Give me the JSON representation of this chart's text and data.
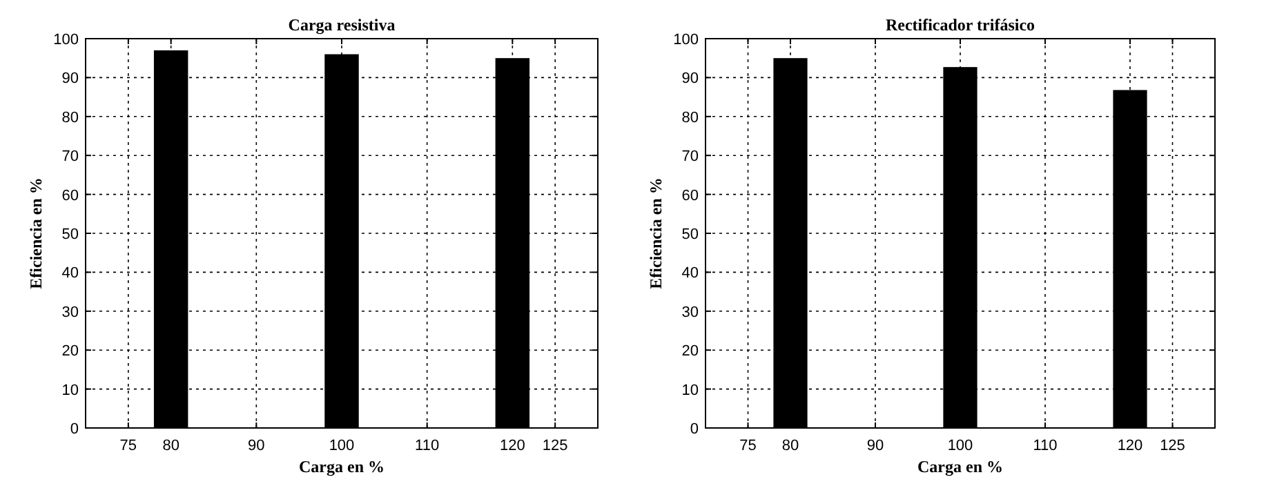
{
  "chart_data": [
    {
      "type": "bar",
      "title": "Carga resistiva",
      "xlabel": "Carga en %",
      "ylabel": "Eficiencia en %",
      "x": [
        80,
        100,
        120
      ],
      "values": [
        97,
        96,
        95
      ],
      "color": "#000000",
      "xlim": [
        70,
        130
      ],
      "xticks": [
        75,
        80,
        90,
        100,
        110,
        120,
        125
      ],
      "ylim": [
        0,
        100
      ],
      "yticks": [
        0,
        10,
        20,
        30,
        40,
        50,
        60,
        70,
        80,
        90,
        100
      ],
      "grid": true
    },
    {
      "type": "bar",
      "title": "Rectificador trifásico",
      "xlabel": "Carga en %",
      "ylabel": "Eficiencia en %",
      "x": [
        80,
        100,
        120
      ],
      "values": [
        95,
        92.7,
        86.8
      ],
      "color": "#000000",
      "xlim": [
        70,
        130
      ],
      "xticks": [
        75,
        80,
        90,
        100,
        110,
        120,
        125
      ],
      "ylim": [
        0,
        100
      ],
      "yticks": [
        0,
        10,
        20,
        30,
        40,
        50,
        60,
        70,
        80,
        90,
        100
      ],
      "grid": true
    }
  ]
}
